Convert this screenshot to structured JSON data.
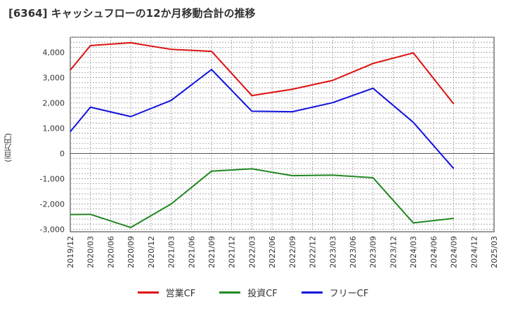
{
  "chart_data": {
    "type": "line",
    "title": "[6364]  キャッシュフローの12か月移動合計の推移",
    "ylabel": "(百万円)",
    "xlabel": "",
    "ylim": [
      -3100,
      4600
    ],
    "yticks": [
      4000,
      3000,
      2000,
      1000,
      0,
      -1000,
      -2000,
      -3000
    ],
    "ytick_labels": [
      "4,000",
      "3,000",
      "2,000",
      "1,000",
      "0",
      "-1,000",
      "-2,000",
      "-3,000"
    ],
    "categories": [
      "2019/12",
      "2020/03",
      "2020/06",
      "2020/09",
      "2020/12",
      "2021/03",
      "2021/06",
      "2021/09",
      "2021/12",
      "2022/03",
      "2022/06",
      "2022/09",
      "2022/12",
      "2023/03",
      "2023/06",
      "2023/09",
      "2023/12",
      "2024/03",
      "2024/06",
      "2024/09",
      "2024/12",
      "2025/03"
    ],
    "series": [
      {
        "name": "営業CF",
        "color": "#dd1111",
        "values": [
          3300,
          4270,
          null,
          4380,
          null,
          4120,
          null,
          4040,
          null,
          2290,
          null,
          2540,
          null,
          2890,
          null,
          3560,
          null,
          3980,
          null,
          1960,
          null,
          null
        ]
      },
      {
        "name": "投資CF",
        "color": "#228822",
        "values": [
          -2420,
          -2410,
          null,
          -2930,
          null,
          -2000,
          null,
          -700,
          null,
          -610,
          null,
          -880,
          null,
          -860,
          null,
          -960,
          null,
          -2750,
          null,
          -2570,
          null,
          null
        ]
      },
      {
        "name": "フリーCF",
        "color": "#1111dd",
        "values": [
          860,
          1830,
          null,
          1460,
          null,
          2100,
          null,
          3320,
          null,
          1670,
          null,
          1650,
          null,
          2010,
          null,
          2580,
          null,
          1230,
          null,
          -600,
          null,
          null
        ]
      }
    ]
  }
}
